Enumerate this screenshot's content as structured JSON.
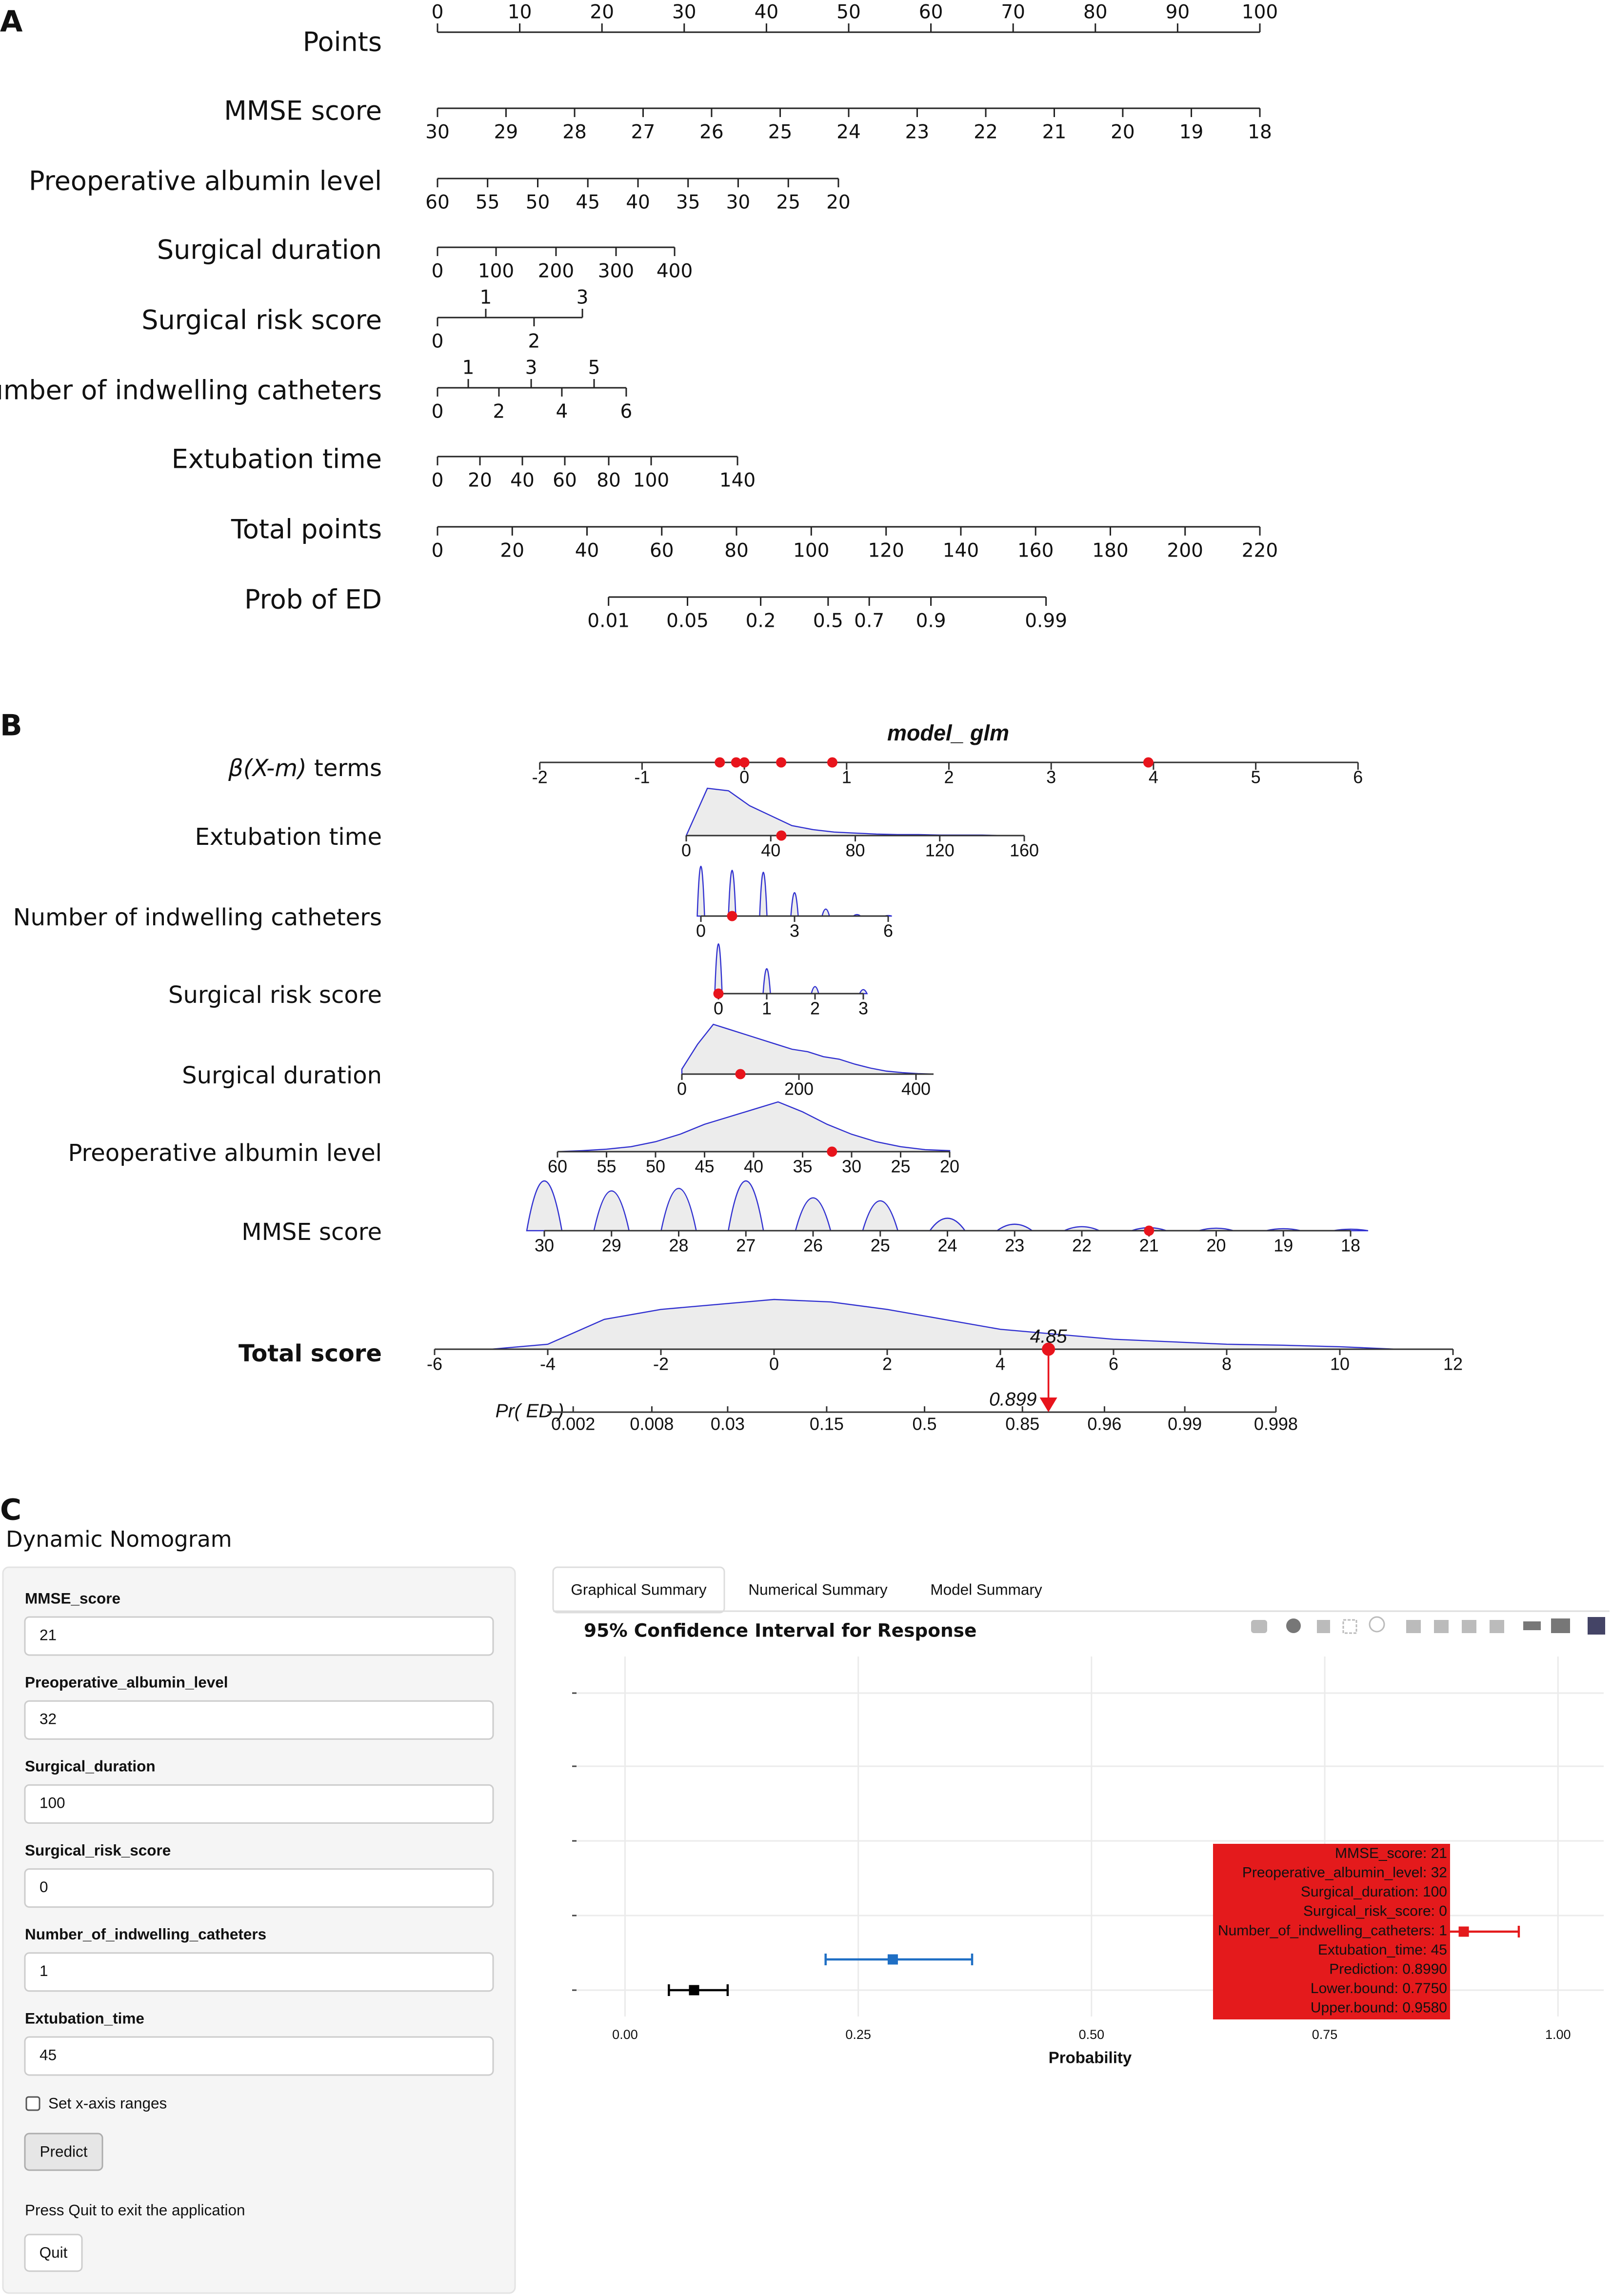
{
  "panel_a": {
    "label": "A",
    "rows": [
      {
        "label": "Points",
        "side": "above",
        "ticks": [
          0,
          10,
          20,
          30,
          40,
          50,
          60,
          70,
          80,
          90,
          100
        ],
        "points": [
          0,
          10,
          20,
          30,
          40,
          50,
          60,
          70,
          80,
          90,
          100
        ]
      },
      {
        "label": "MMSE score",
        "side": "below",
        "ticks": [
          30,
          29,
          28,
          27,
          26,
          25,
          24,
          23,
          22,
          21,
          20,
          19,
          18
        ],
        "points": [
          0,
          8.33,
          16.67,
          25,
          33.33,
          41.67,
          50,
          58.33,
          66.67,
          75,
          83.33,
          91.67,
          100
        ]
      },
      {
        "label": "Preoperative albumin level",
        "side": "below",
        "ticks": [
          60,
          55,
          50,
          45,
          40,
          35,
          30,
          25,
          20
        ],
        "points": [
          0,
          6.09,
          12.19,
          18.28,
          24.38,
          30.47,
          36.56,
          42.66,
          48.75
        ]
      },
      {
        "label": "Surgical duration",
        "side": "below",
        "ticks": [
          0,
          100,
          200,
          300,
          400
        ],
        "points": [
          0,
          7.12,
          14.41,
          21.71,
          28.83
        ]
      },
      {
        "label": "Surgical risk score",
        "side": "alternate",
        "ticks": [
          0,
          1,
          2,
          3
        ],
        "points": [
          0,
          5.87,
          11.74,
          17.62
        ]
      },
      {
        "label": "Number of indwelling catheters",
        "side": "alternate",
        "ticks": [
          0,
          1,
          2,
          3,
          4,
          5,
          6
        ],
        "points": [
          0,
          3.74,
          7.47,
          11.39,
          15.12,
          19.04,
          22.95
        ]
      },
      {
        "label": "Extubation time",
        "side": "below",
        "ticks": [
          0,
          20,
          40,
          60,
          80,
          100,
          140
        ],
        "points": [
          0,
          5.16,
          10.32,
          15.48,
          20.82,
          25.98,
          36.48
        ]
      },
      {
        "label": "Total points",
        "side": "below",
        "ticks": [
          0,
          20,
          40,
          60,
          80,
          100,
          120,
          140,
          160,
          180,
          200,
          220
        ],
        "points": [
          0,
          9.09,
          18.18,
          27.27,
          36.36,
          45.45,
          54.55,
          63.64,
          72.73,
          81.82,
          90.91,
          100
        ]
      },
      {
        "label": "Prob of ED",
        "side": "below",
        "ticks": [
          0.01,
          0.05,
          0.2,
          0.5,
          0.7,
          0.9,
          0.99
        ],
        "points": [
          20.8,
          30.4,
          39.3,
          47.5,
          52.5,
          60.0,
          74.0
        ]
      }
    ]
  },
  "panel_b": {
    "label": "B",
    "title": "model_ glm",
    "terms": {
      "label_symbol": "β(X-m)",
      "label_rest": " terms",
      "ticks": [
        -2,
        -1,
        0,
        1,
        2,
        3,
        4,
        5,
        6
      ],
      "values": [
        -0.24,
        -0.08,
        0,
        0.36,
        0.86,
        3.95
      ]
    },
    "rows": [
      {
        "label": "Extubation time",
        "kind": "smooth",
        "xlim": [
          0,
          160
        ],
        "ticks": [
          0,
          40,
          80,
          120,
          160
        ],
        "value": 45,
        "density": [
          0,
          0.95,
          0.9,
          0.6,
          0.4,
          0.2,
          0.12,
          0.07,
          0.05,
          0.03,
          0.02,
          0.02,
          0.01,
          0.01,
          0.01,
          0,
          0
        ]
      },
      {
        "label": "Number of indwelling catheters",
        "kind": "spikes",
        "xlim": [
          0,
          6
        ],
        "ticks": [
          0,
          3,
          6
        ],
        "value": 1,
        "density": [
          1,
          0.92,
          0.88,
          0.47,
          0.14,
          0.03,
          0.01
        ]
      },
      {
        "label": "Surgical risk score",
        "kind": "spikes",
        "xlim": [
          0,
          3
        ],
        "ticks": [
          0,
          1,
          2,
          3
        ],
        "value": 0,
        "density": [
          1,
          0.5,
          0.14,
          0.08
        ]
      },
      {
        "label": "Surgical duration",
        "kind": "smooth",
        "xlim": [
          0,
          430
        ],
        "ticks": [
          0,
          200,
          400
        ],
        "value": 100,
        "density": [
          0.1,
          0.6,
          1,
          0.9,
          0.8,
          0.7,
          0.6,
          0.5,
          0.45,
          0.35,
          0.3,
          0.2,
          0.12,
          0.06,
          0.03,
          0.01,
          0
        ]
      },
      {
        "label": "Preoperative albumin level",
        "kind": "smooth",
        "xlim": [
          60,
          20
        ],
        "ticks": [
          60,
          55,
          50,
          45,
          40,
          35,
          30,
          25,
          20
        ],
        "value": 32,
        "density": [
          0,
          0.02,
          0.05,
          0.1,
          0.2,
          0.35,
          0.55,
          0.7,
          0.85,
          1,
          0.8,
          0.55,
          0.35,
          0.2,
          0.1,
          0.04,
          0.02
        ]
      },
      {
        "label": "MMSE score",
        "kind": "humps",
        "xlim": [
          30,
          18
        ],
        "ticks": [
          30,
          29,
          28,
          27,
          26,
          25,
          24,
          23,
          22,
          21,
          20,
          19,
          18
        ],
        "value": 21,
        "density": [
          1,
          0.8,
          0.85,
          1,
          0.66,
          0.6,
          0.25,
          0.13,
          0.08,
          0.06,
          0.05,
          0.04,
          0.03
        ]
      },
      {
        "label": "Total score",
        "kind": "smooth",
        "xlim": [
          -6,
          12
        ],
        "ticks": [
          -6,
          -4,
          -2,
          0,
          2,
          4,
          6,
          8,
          10,
          12
        ],
        "value": 4.85,
        "density": [
          0,
          0,
          0.1,
          0.6,
          0.8,
          0.9,
          1,
          0.95,
          0.8,
          0.6,
          0.4,
          0.3,
          0.2,
          0.15,
          0.1,
          0.08,
          0.05,
          0,
          0
        ]
      }
    ],
    "prob": {
      "label": "Pr( ED )",
      "ticks": [
        0.002,
        0.008,
        0.03,
        0.15,
        0.5,
        0.85,
        0.96,
        0.99,
        0.998
      ],
      "scores": [
        -3.55,
        -2.16,
        -0.82,
        0.93,
        2.66,
        4.39,
        5.84,
        7.26,
        8.87
      ],
      "value": 0.899
    }
  },
  "panel_c": {
    "label": "C",
    "title": "Dynamic Nomogram",
    "inputs": [
      {
        "label": "MMSE_score",
        "value": "21"
      },
      {
        "label": "Preoperative_albumin_level",
        "value": "32"
      },
      {
        "label": "Surgical_duration",
        "value": "100"
      },
      {
        "label": "Surgical_risk_score",
        "value": "0"
      },
      {
        "label": "Number_of_indwelling_catheters",
        "value": "1"
      },
      {
        "label": "Extubation_time",
        "value": "45"
      }
    ],
    "checkbox": "Set x-axis ranges",
    "predict": "Predict",
    "quit_note": "Press Quit to exit the application",
    "quit": "Quit",
    "tabs": [
      "Graphical Summary",
      "Numerical Summary",
      "Model Summary"
    ],
    "chart_data": {
      "type": "errorbar",
      "title": "95% Confidence Interval for Response",
      "xlabel": "Probability",
      "xlim": [
        -0.052,
        1.049
      ],
      "xticks": [
        {
          "value": 0,
          "label": "0.00"
        },
        {
          "value": 0.25,
          "label": "0.25"
        },
        {
          "value": 0.5,
          "label": "0.50"
        },
        {
          "value": 0.75,
          "label": "0.75"
        },
        {
          "value": 1,
          "label": "1.00"
        }
      ],
      "grid": true,
      "points": [
        {
          "estimate": 0.074,
          "lower": 0.047,
          "upper": 0.11,
          "color": "#000000"
        },
        {
          "estimate": 0.287,
          "lower": 0.215,
          "upper": 0.372,
          "color": "#1f6fc4"
        },
        {
          "estimate": 0.899,
          "lower": 0.775,
          "upper": 0.958,
          "color": "#e41a1c"
        }
      ],
      "tooltip": [
        "MMSE_score: 21",
        "Preoperative_albumin_level: 32",
        "Surgical_duration: 100",
        "Surgical_risk_score: 0",
        "Number_of_indwelling_catheters: 1",
        "Extubation_time: 45",
        "Prediction: 0.8990",
        "Lower.bound: 0.7750",
        "Upper.bound: 0.9580"
      ]
    }
  }
}
